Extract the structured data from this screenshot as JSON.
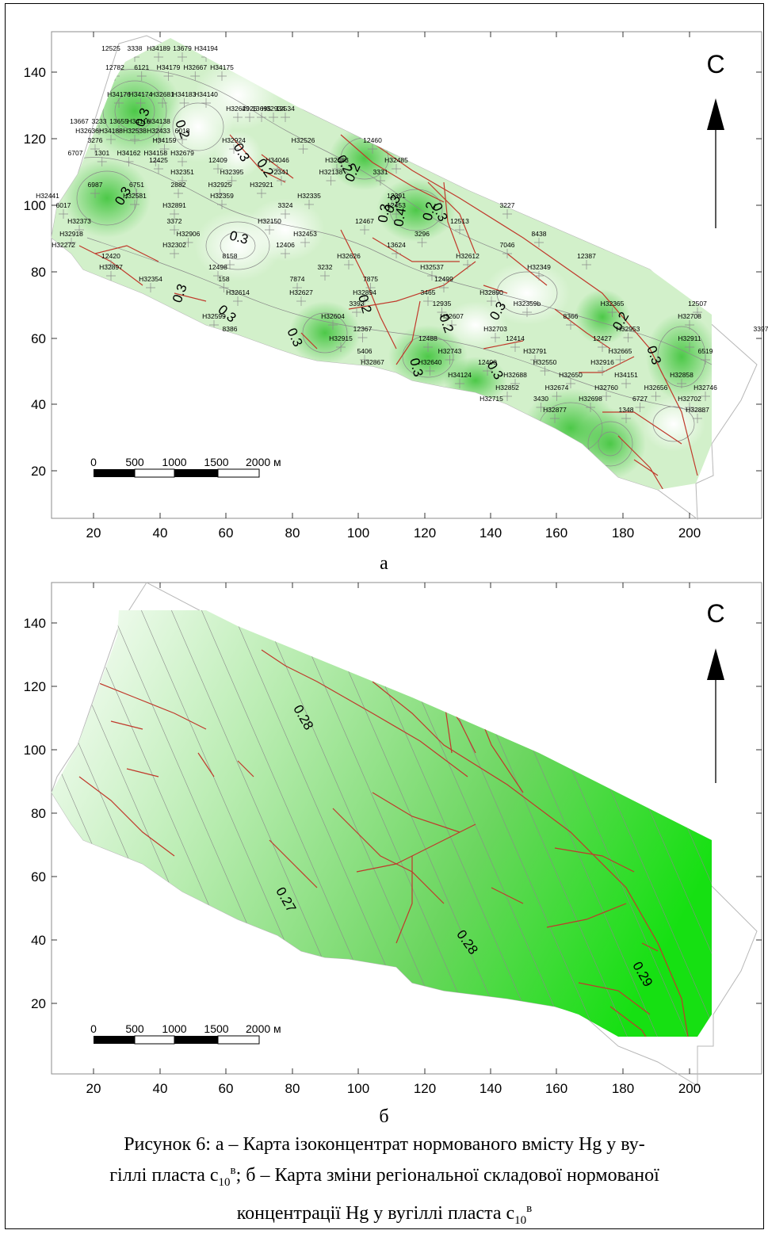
{
  "panel_a": {
    "letter": "а",
    "north_label": "С",
    "x_ticks": [
      "20",
      "40",
      "60",
      "80",
      "100",
      "120",
      "140",
      "160",
      "180",
      "200"
    ],
    "y_ticks": [
      "140",
      "120",
      "100",
      "80",
      "60",
      "40",
      "20"
    ],
    "scale_labels": [
      "0",
      "500",
      "1000",
      "1500",
      "2000 м"
    ],
    "isolines": [
      "0.3",
      "0.2",
      "0.3",
      "0.3",
      "0.2",
      "0.3",
      "0.3",
      "0.3",
      "0.3",
      "0.2",
      "0.3",
      "0.4",
      "0.2",
      "0.3",
      "0.2",
      "0.3",
      "0.3",
      "0.2",
      "0.3",
      "0.2",
      "0.3",
      "0.3",
      "0.2"
    ],
    "wells": [
      "12525",
      "3338",
      "Н34189",
      "13679",
      "Н34194",
      "12782",
      "6121",
      "Н34179",
      "Н32667",
      "Н34175",
      "Н34176",
      "Н34174",
      "Н32681",
      "Н34183",
      "Н34140",
      "Н32649",
      "2926",
      "13695",
      "Н32934",
      "12534",
      "13667",
      "3233",
      "13655",
      "Н34116",
      "Н34138",
      "Н32636",
      "Н34188",
      "Н32538",
      "Н32433",
      "6018",
      "3276",
      "Н34159",
      "Н32924",
      "Н32526",
      "12460",
      "6707",
      "1301",
      "Н34162",
      "Н34158",
      "Н32679",
      "12425",
      "12409",
      "Н34046",
      "Н32483",
      "Н32485",
      "Н32351",
      "Н32395",
      "2341",
      "Н32138",
      "3331",
      "6987",
      "6751",
      "2882",
      "Н32925",
      "Н32921",
      "Н32441",
      "Н32581",
      "Н32359",
      "Н32335",
      "12391",
      "6017",
      "Н32891",
      "3324",
      "12453",
      "3227",
      "Н32373",
      "3372",
      "Н32150",
      "12467",
      "12513",
      "Н32918",
      "Н32906",
      "Н32453",
      "3296",
      "8438",
      "Н32272",
      "Н32302",
      "12406",
      "13624",
      "7046",
      "12420",
      "8158",
      "Н32626",
      "Н32612",
      "12387",
      "Н32897",
      "12498",
      "3232",
      "Н32537",
      "Н32349",
      "Н32354",
      "158",
      "7874",
      "7875",
      "12499",
      "Н32614",
      "Н32627",
      "Н32894",
      "3465",
      "Н32890",
      "3393",
      "12935",
      "Н32359b",
      "Н32365",
      "12507",
      "Н32599",
      "Н32604",
      "Н32607",
      "8366",
      "Н32708",
      "8386",
      "12367",
      "Н32703",
      "Н32953",
      "3397",
      "Н32915",
      "12488",
      "12414",
      "12427",
      "Н32911",
      "5406",
      "Н32743",
      "Н32791",
      "Н32665",
      "6519",
      "Н32867",
      "Н32640",
      "12400",
      "Н32550",
      "Н32916",
      "Н34124",
      "Н32688",
      "Н32650",
      "Н34151",
      "Н32858",
      "Н32852",
      "Н32674",
      "Н32760",
      "Н32656",
      "Н32746",
      "Н32715",
      "3430",
      "Н32698",
      "6727",
      "Н32702",
      "Н32877",
      "1348",
      "Н32887"
    ]
  },
  "panel_b": {
    "letter": "б",
    "north_label": "С",
    "x_ticks": [
      "20",
      "40",
      "60",
      "80",
      "100",
      "120",
      "140",
      "160",
      "180",
      "200"
    ],
    "y_ticks": [
      "140",
      "120",
      "100",
      "80",
      "60",
      "40",
      "20"
    ],
    "scale_labels": [
      "0",
      "500",
      "1000",
      "1500",
      "2000 м"
    ],
    "isolines": [
      "0.28",
      "0.27",
      "0.28",
      "0.29"
    ]
  },
  "caption": {
    "line1": "Рисунок 6: а – Карта ізоконцентрат нормованого вмісту Hg у ву-",
    "line2_a": "гіллі пласта с",
    "sub1": "10",
    "sup1": "в",
    "line2_b": "; б – Карта зміни регіональної складової нормованої",
    "line3_a": "концентрації Hg у вугіллі пласта с",
    "sub2": "10",
    "sup2": "в"
  },
  "colors": {
    "map_light": "#f2fbef",
    "map_mid": "#a8e39c",
    "map_dark": "#3ec43a",
    "fault": "#c0392b",
    "contour": "#8a8a8a",
    "trend_max": "#16e012"
  }
}
